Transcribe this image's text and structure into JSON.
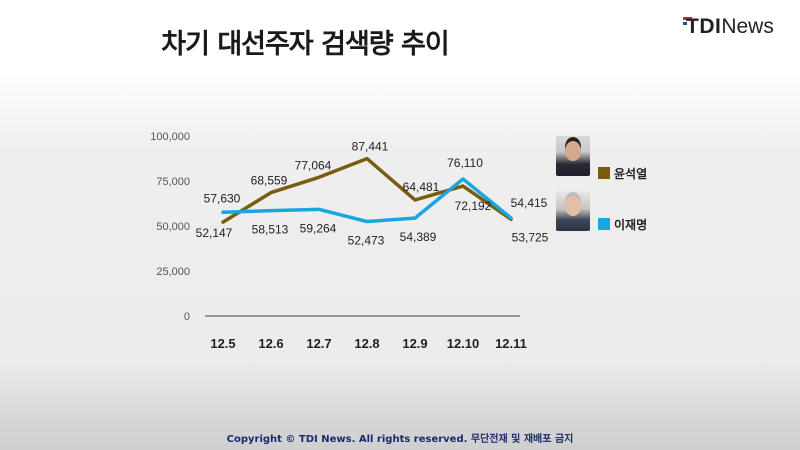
{
  "header": {
    "title": "차기 대선주자 검색량 추이",
    "logo_tdi": "TDI",
    "logo_news": "News"
  },
  "chart_data": {
    "type": "line",
    "title": "차기 대선주자 검색량 추이",
    "xlabel": "",
    "ylabel": "",
    "categories": [
      "12.5",
      "12.6",
      "12.7",
      "12.8",
      "12.9",
      "12.10",
      "12.11"
    ],
    "yticks": [
      "0",
      "25,000",
      "50,000",
      "75,000",
      "100,000"
    ],
    "ylim": [
      0,
      100000
    ],
    "grid": false,
    "legend_position": "right",
    "series": [
      {
        "name": "윤석열",
        "color": "#7a5c0f",
        "values": [
          52147,
          68559,
          77064,
          87441,
          64481,
          72192,
          53725
        ],
        "labels": [
          "52,147",
          "68,559",
          "77,064",
          "87,441",
          "64,481",
          "72,192",
          "53,725"
        ]
      },
      {
        "name": "이재명",
        "color": "#19a6e0",
        "values": [
          57630,
          58513,
          59264,
          52473,
          54389,
          76110,
          54415
        ],
        "labels": [
          "57,630",
          "58,513",
          "59,264",
          "52,473",
          "54,389",
          "76,110",
          "54,415"
        ]
      }
    ]
  },
  "legend": {
    "items": [
      {
        "name": "윤석열",
        "color": "#7a5c0f",
        "photo": "portrait-yoon"
      },
      {
        "name": "이재명",
        "color": "#19a6e0",
        "photo": "portrait-lee"
      }
    ]
  },
  "footer": {
    "copyright": "Copyright © TDI News. All rights reserved. 무단전재 및 재배포 금지"
  }
}
